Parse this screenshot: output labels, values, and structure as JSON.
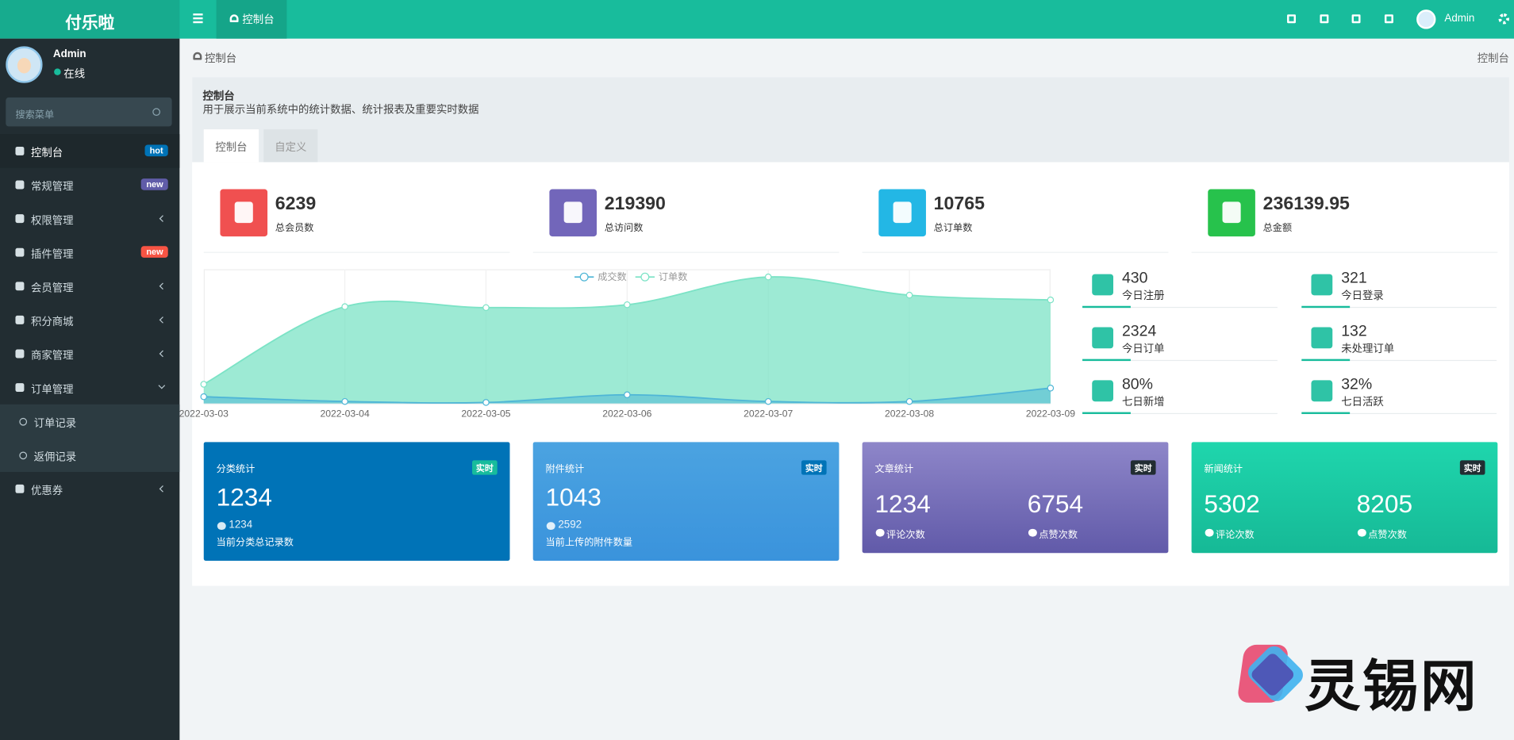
{
  "header": {
    "logo": "付乐啦",
    "tab": "控制台",
    "user": "Admin"
  },
  "sidebar": {
    "user": "Admin",
    "status": "在线",
    "search_placeholder": "搜索菜单",
    "menu": [
      {
        "label": "控制台",
        "badge": "hot"
      },
      {
        "label": "常规管理",
        "badge": "new"
      },
      {
        "label": "权限管理"
      },
      {
        "label": "插件管理",
        "badge": "new"
      },
      {
        "label": "会员管理"
      },
      {
        "label": "积分商城"
      },
      {
        "label": "商家管理"
      },
      {
        "label": "订单管理",
        "children": [
          "订单记录",
          "返佣记录"
        ]
      },
      {
        "label": "优惠券"
      }
    ]
  },
  "breadcrumb": {
    "left": "控制台",
    "right": "控制台"
  },
  "panel": {
    "title": "控制台",
    "description": "用于展示当前系统中的统计数据、统计报表及重要实时数据",
    "tabs": [
      "控制台",
      "自定义"
    ]
  },
  "stats": [
    {
      "value": "6239",
      "label": "总会员数"
    },
    {
      "value": "219390",
      "label": "总访问数"
    },
    {
      "value": "10765",
      "label": "总订单数"
    },
    {
      "value": "236139.95",
      "label": "总金额"
    }
  ],
  "chart": {
    "type": "area",
    "categories": [
      "2022-03-03",
      "2022-03-04",
      "2022-03-05",
      "2022-03-06",
      "2022-03-07",
      "2022-03-08",
      "2022-03-09"
    ],
    "series": [
      {
        "name": "成交数",
        "color": "#4fb6d6",
        "values": [
          7,
          2,
          1,
          9,
          2,
          2,
          16
        ]
      },
      {
        "name": "订单数",
        "color": "#7ce3c6",
        "values": [
          20,
          101,
          100,
          103,
          132,
          113,
          108
        ]
      }
    ],
    "ylim": [
      0,
      140
    ]
  },
  "mini_stats": [
    {
      "value": "430",
      "label": "今日注册"
    },
    {
      "value": "321",
      "label": "今日登录"
    },
    {
      "value": "2324",
      "label": "今日订单"
    },
    {
      "value": "132",
      "label": "未处理订单"
    },
    {
      "value": "80%",
      "label": "七日新增"
    },
    {
      "value": "32%",
      "label": "七日活跃"
    }
  ],
  "cards": [
    {
      "title": "分类统计",
      "badge": "实时",
      "value": "1234",
      "sub_value": "1234",
      "note": "当前分类总记录数"
    },
    {
      "title": "附件统计",
      "badge": "实时",
      "value": "1043",
      "sub_value": "2592",
      "note": "当前上传的附件数量"
    },
    {
      "title": "文章统计",
      "badge": "实时",
      "items": [
        {
          "value": "1234",
          "label": "评论次数"
        },
        {
          "value": "6754",
          "label": "点赞次数"
        }
      ]
    },
    {
      "title": "新闻统计",
      "badge": "实时",
      "items": [
        {
          "value": "5302",
          "label": "评论次数"
        },
        {
          "value": "8205",
          "label": "点赞次数"
        }
      ]
    }
  ],
  "watermark": "灵锡网"
}
